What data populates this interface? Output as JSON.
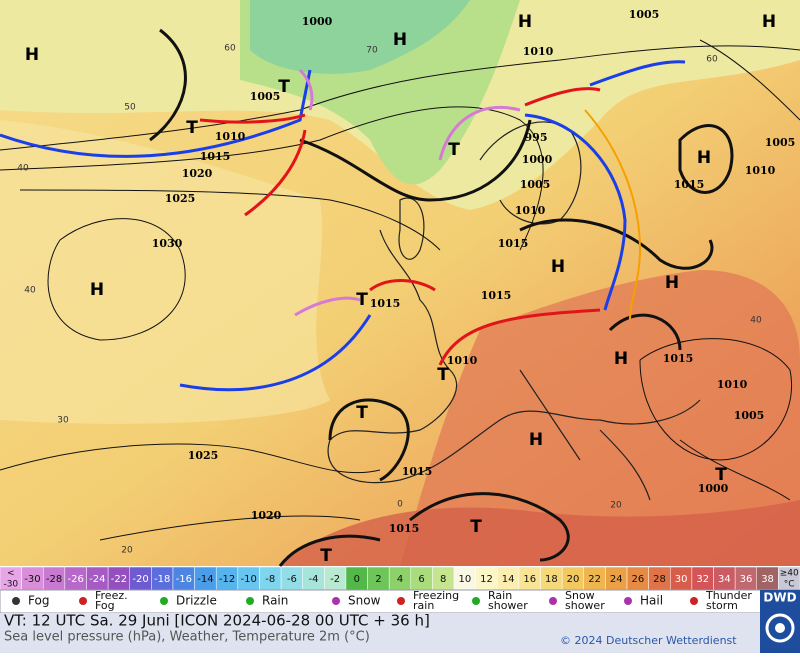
{
  "map": {
    "isobar_labels": [
      "1000",
      "1010",
      "1005",
      "1005",
      "1010",
      "1015",
      "1020",
      "1025",
      "1030",
      "995",
      "1000",
      "1005",
      "1010",
      "1015",
      "1015",
      "1015",
      "1010",
      "1015",
      "1010",
      "1005",
      "1015",
      "1010",
      "1005",
      "1000",
      "1025",
      "1020",
      "1015",
      "1015"
    ],
    "centers": [
      "H",
      "H",
      "H",
      "T",
      "T",
      "T",
      "H",
      "H",
      "H",
      "H",
      "T",
      "T",
      "T",
      "H",
      "H",
      "T",
      "T",
      "T",
      "H"
    ],
    "graticule_labels": [
      "60",
      "50",
      "40",
      "40",
      "30",
      "20",
      "70",
      "60",
      "40",
      "20",
      "0"
    ]
  },
  "legend": {
    "temperature_scale": [
      {
        "top": "<",
        "bottom": "-30",
        "color": "#e8a6e8"
      },
      {
        "label": "-30",
        "color": "#d98ed9"
      },
      {
        "label": "-28",
        "color": "#c87ad0"
      },
      {
        "label": "-26",
        "color": "#b769c9"
      },
      {
        "label": "-24",
        "color": "#a65bc4"
      },
      {
        "label": "-22",
        "color": "#9450bf"
      },
      {
        "label": "-20",
        "color": "#6f5bd0"
      },
      {
        "label": "-18",
        "color": "#5a6fdb"
      },
      {
        "label": "-16",
        "color": "#4c86e2"
      },
      {
        "label": "-14",
        "color": "#4a9de8"
      },
      {
        "label": "-12",
        "color": "#55b3ee"
      },
      {
        "label": "-10",
        "color": "#68c5f0"
      },
      {
        "label": "-8",
        "color": "#7fd4ee"
      },
      {
        "label": "-6",
        "color": "#93dde6"
      },
      {
        "label": "-4",
        "color": "#a6e4dc"
      },
      {
        "label": "-2",
        "color": "#b9e9d0"
      },
      {
        "label": "0",
        "color": "#52b84a"
      },
      {
        "label": "2",
        "color": "#6ec55a"
      },
      {
        "label": "4",
        "color": "#8dd16a"
      },
      {
        "label": "6",
        "color": "#a9dc7c"
      },
      {
        "label": "8",
        "color": "#c5e68f"
      },
      {
        "label": "10",
        "color": "#f8f8e4"
      },
      {
        "label": "12",
        "color": "#fbf6c8"
      },
      {
        "label": "14",
        "color": "#fbeeb0"
      },
      {
        "label": "16",
        "color": "#f8e494"
      },
      {
        "label": "18",
        "color": "#f5d87a"
      },
      {
        "label": "20",
        "color": "#f2c860"
      },
      {
        "label": "22",
        "color": "#efb54e"
      },
      {
        "label": "24",
        "color": "#eba046"
      },
      {
        "label": "26",
        "color": "#e68a44"
      },
      {
        "label": "28",
        "color": "#e07448"
      },
      {
        "label": "30",
        "color": "#d85e4c"
      },
      {
        "label": "32",
        "color": "#d45458"
      },
      {
        "label": "34",
        "color": "#cc5c64"
      },
      {
        "label": "36",
        "color": "#c06a70"
      },
      {
        "label": "38",
        "color": "#a06464"
      },
      {
        "top": "≥40",
        "bottom": "°C",
        "color": "#c8c8d6"
      }
    ],
    "weather": [
      {
        "lines": [
          "Fog"
        ]
      },
      {
        "lines": [
          "Freez.",
          "Fog"
        ]
      },
      {
        "lines": [
          "Drizzle"
        ]
      },
      {
        "lines": [
          "Rain"
        ]
      },
      {
        "lines": [
          "Snow"
        ]
      },
      {
        "lines": [
          "Freezing",
          "rain"
        ]
      },
      {
        "lines": [
          "Rain",
          "shower"
        ]
      },
      {
        "lines": [
          "Snow",
          "shower"
        ]
      },
      {
        "lines": [
          "Hail"
        ]
      },
      {
        "lines": [
          "Thunder",
          "storm"
        ]
      }
    ]
  },
  "footer": {
    "valid_time": "VT: 12 UTC Sa.  29 Juni [ICON 2024-06-28  00 UTC + 36 h]",
    "description": "Sea level pressure (hPa), Weather, Temperature 2m (°C)",
    "copyright": "© 2024 Deutscher Wetterdienst",
    "logo": "DWD"
  }
}
